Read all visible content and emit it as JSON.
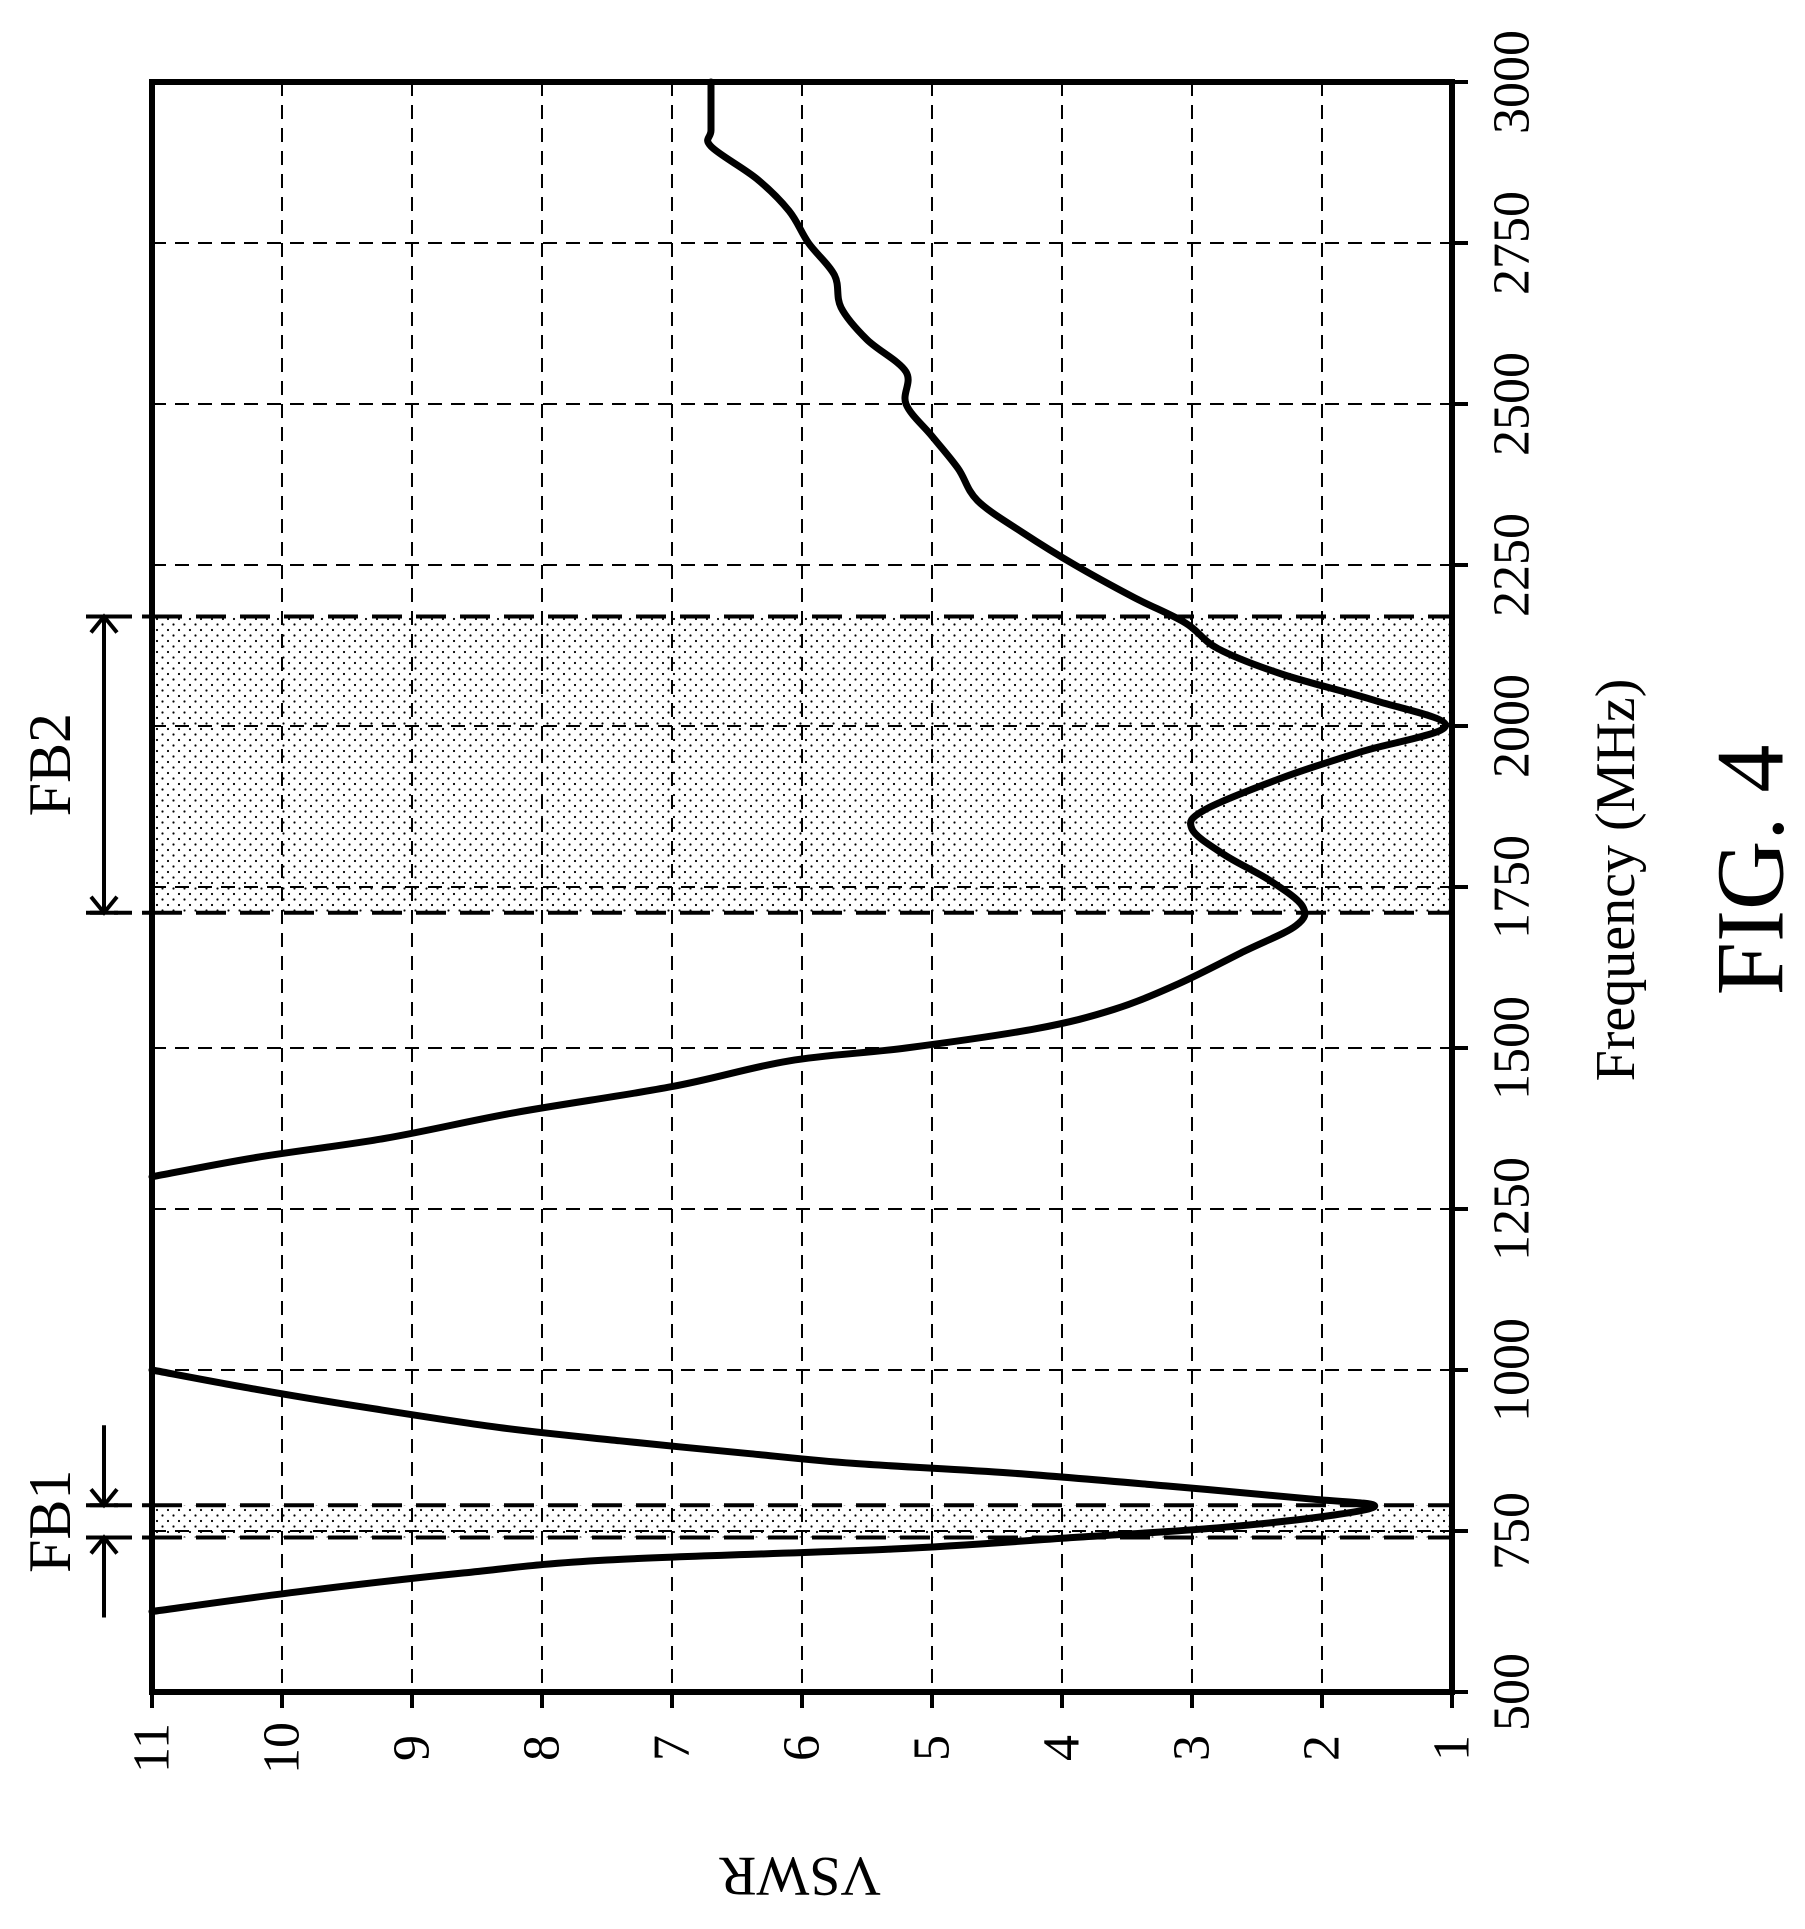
{
  "chart_data": {
    "type": "line",
    "orientation": "rotated-90-clockwise",
    "xlabel": "Frequency (MHz)",
    "ylabel": "VSWR",
    "caption": "FIG. 4",
    "xlim": [
      500,
      3000
    ],
    "ylim": [
      1,
      11
    ],
    "x_ticks": [
      500,
      750,
      1000,
      1250,
      1500,
      1750,
      2000,
      2250,
      2500,
      2750,
      3000
    ],
    "y_ticks": [
      1,
      2,
      3,
      4,
      5,
      6,
      7,
      8,
      9,
      10,
      11
    ],
    "x_tick_labels": [
      "500",
      "750",
      "1000",
      "1250",
      "1500",
      "1750",
      "2000",
      "2250",
      "2500",
      "2750",
      "3000"
    ],
    "y_tick_labels": [
      "1",
      "2",
      "3",
      "4",
      "5",
      "6",
      "7",
      "8",
      "9",
      "10",
      "11"
    ],
    "grid": true,
    "bands": [
      {
        "name": "FB1",
        "x_start": 740,
        "x_end": 790
      },
      {
        "name": "FB2",
        "x_start": 1710,
        "x_end": 2170
      }
    ],
    "series": [
      {
        "points": [
          [
            625,
            11
          ],
          [
            655,
            9.9
          ],
          [
            685,
            8.6
          ],
          [
            705,
            7.5
          ],
          [
            722,
            5.3
          ],
          [
            740,
            3.9
          ],
          [
            755,
            2.8
          ],
          [
            775,
            1.9
          ],
          [
            790,
            1.6
          ],
          [
            800,
            2.1
          ],
          [
            820,
            3.2
          ],
          [
            840,
            4.4
          ],
          [
            855,
            5.6
          ],
          [
            870,
            6.4
          ],
          [
            890,
            7.4
          ],
          [
            910,
            8.3
          ],
          [
            940,
            9.3
          ],
          [
            970,
            10.2
          ],
          [
            1000,
            11
          ]
        ]
      },
      {
        "points": [
          [
            1300,
            11
          ],
          [
            1330,
            10.2
          ],
          [
            1360,
            9.2
          ],
          [
            1400,
            8.2
          ],
          [
            1440,
            7.0
          ],
          [
            1480,
            6.1
          ],
          [
            1500,
            5.2
          ],
          [
            1530,
            4.2
          ],
          [
            1560,
            3.6
          ],
          [
            1600,
            3.1
          ],
          [
            1650,
            2.6
          ],
          [
            1690,
            2.2
          ],
          [
            1720,
            2.15
          ],
          [
            1760,
            2.4
          ],
          [
            1800,
            2.75
          ],
          [
            1840,
            3.0
          ],
          [
            1870,
            2.9
          ],
          [
            1920,
            2.3
          ],
          [
            1960,
            1.7
          ],
          [
            2000,
            1.05
          ],
          [
            2040,
            1.6
          ],
          [
            2080,
            2.3
          ],
          [
            2120,
            2.8
          ],
          [
            2160,
            3.05
          ],
          [
            2200,
            3.45
          ],
          [
            2250,
            3.9
          ],
          [
            2300,
            4.3
          ],
          [
            2350,
            4.65
          ],
          [
            2400,
            4.8
          ],
          [
            2450,
            5.0
          ],
          [
            2500,
            5.2
          ],
          [
            2550,
            5.2
          ],
          [
            2600,
            5.5
          ],
          [
            2650,
            5.7
          ],
          [
            2700,
            5.75
          ],
          [
            2750,
            5.95
          ],
          [
            2800,
            6.1
          ],
          [
            2850,
            6.35
          ],
          [
            2900,
            6.7
          ],
          [
            2925,
            6.7
          ],
          [
            2975,
            6.7
          ],
          [
            3000,
            6.7
          ]
        ]
      }
    ]
  }
}
